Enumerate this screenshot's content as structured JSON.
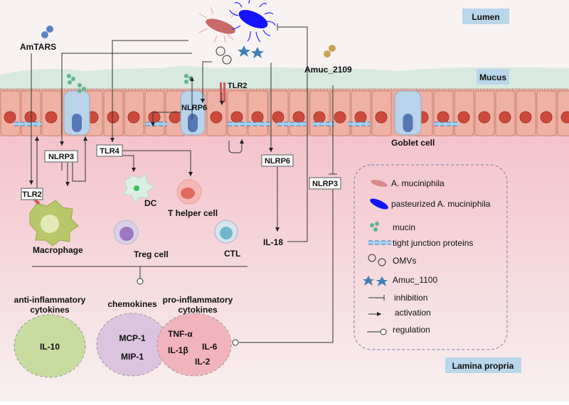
{
  "regions": {
    "lumen": "Lumen",
    "mucus": "Mucus",
    "lamina_propria": "Lamina propria",
    "goblet_cell": "Goblet cell"
  },
  "molecules": {
    "amtars": "AmTARS",
    "amuc_2109": "Amuc_2109",
    "tlr2_top": "TLR2",
    "nlrp6_goblet": "NLRP6"
  },
  "nodes": {
    "nlrp3_left": "NLRP3",
    "tlr4": "TLR4",
    "tlr2_left": "TLR2",
    "nlrp6": "NLRP6",
    "nlrp3_right": "NLRP3",
    "il18": "IL-18"
  },
  "cells": {
    "dc": "DC",
    "t_helper": "T helper cell",
    "macrophage": "Macrophage",
    "treg": "Treg cell",
    "ctl": "CTL"
  },
  "cytokines": {
    "anti_title_1": "anti-inflammatory",
    "anti_title_2": "cytokines",
    "il10": "IL-10",
    "chemo_title": "chemokines",
    "mcp1": "MCP-1",
    "mip1": "MIP-1",
    "pro_title_1": "pro-inflammatory",
    "pro_title_2": "cytokines",
    "tnfa": "TNF-α",
    "il1b": "IL-1β",
    "il6": "IL-6",
    "il2": "IL-2"
  },
  "legend": {
    "items": [
      "A. muciniphila",
      "pasteurized A. muciniphila",
      "mucin",
      "tight junction proteins",
      "OMVs",
      "Amuc_1100",
      "inhibition",
      "activation",
      "regulation"
    ]
  },
  "colors": {
    "label_box": "#b9d6ea",
    "mucus": "#d8e9e0",
    "cell": "#ebaa9c",
    "lamina": "#f3c4cc",
    "bacterium": "#d98a8a",
    "pasteurized": "#1a1aff",
    "mucin": "#5fb58a",
    "star": "#3f80b8",
    "amuc2109": "#c9a25a",
    "amtars": "#5a84c6"
  }
}
